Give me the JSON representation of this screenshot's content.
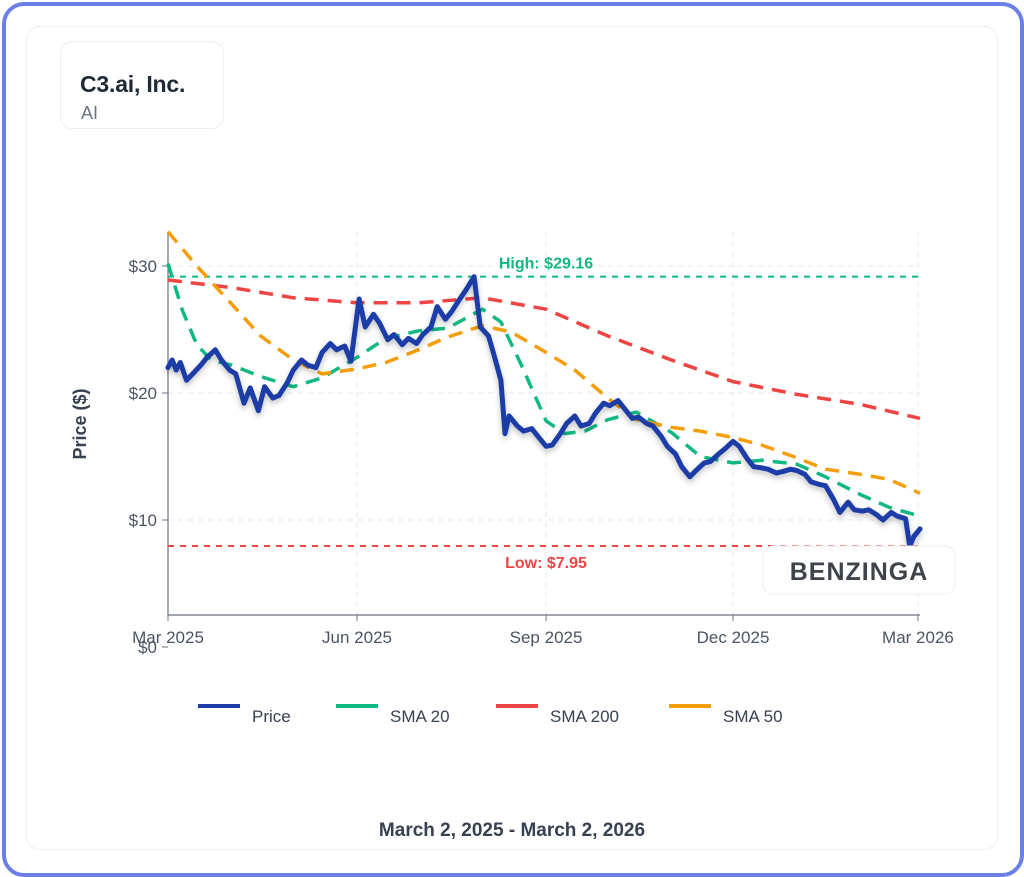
{
  "header": {
    "company": "C3.ai, Inc.",
    "ticker": "AI"
  },
  "footer": {
    "date_range": "March 2, 2025 - March 2, 2026"
  },
  "watermark": "BENZINGA",
  "colors": {
    "price": "#1e3ea8",
    "sma20": "#10b981",
    "sma200": "#ef4444",
    "sma50": "#f59e0b",
    "high": "#10b981",
    "low": "#ef4444",
    "frame": "#6b7fe6"
  },
  "chart_data": {
    "type": "line",
    "ylabel": "Price ($)",
    "xlabel": "",
    "ylim": [
      0,
      33
    ],
    "xlim": [
      "2025-03-01",
      "2026-03-02"
    ],
    "yticks": [
      {
        "value": 0,
        "label": "$0"
      },
      {
        "value": 10,
        "label": "$10"
      },
      {
        "value": 20,
        "label": "$20"
      },
      {
        "value": 30,
        "label": "$30"
      }
    ],
    "xticks": [
      {
        "date": "2025-03-01",
        "label": "Mar 2025"
      },
      {
        "date": "2025-06-01",
        "label": "Jun 2025"
      },
      {
        "date": "2025-09-01",
        "label": "Sep 2025"
      },
      {
        "date": "2025-12-01",
        "label": "Dec 2025"
      },
      {
        "date": "2026-03-01",
        "label": "Mar 2026"
      }
    ],
    "grid": true,
    "legend_position": "bottom",
    "annotations": [
      {
        "label": "High: $29.16",
        "value": 29.16,
        "series": "high"
      },
      {
        "label": "Low: $7.95",
        "value": 7.95,
        "series": "low"
      }
    ],
    "series": [
      {
        "name": "Price",
        "key": "price",
        "style": "solid",
        "points": [
          [
            "2025-03-01",
            22.0
          ],
          [
            "2025-03-03",
            22.6
          ],
          [
            "2025-03-05",
            21.8
          ],
          [
            "2025-03-07",
            22.4
          ],
          [
            "2025-03-10",
            21.0
          ],
          [
            "2025-03-13",
            21.5
          ],
          [
            "2025-03-17",
            22.2
          ],
          [
            "2025-03-20",
            22.8
          ],
          [
            "2025-03-24",
            23.4
          ],
          [
            "2025-03-27",
            22.6
          ],
          [
            "2025-03-31",
            21.8
          ],
          [
            "2025-04-03",
            21.5
          ],
          [
            "2025-04-07",
            19.2
          ],
          [
            "2025-04-10",
            20.4
          ],
          [
            "2025-04-14",
            18.6
          ],
          [
            "2025-04-17",
            20.5
          ],
          [
            "2025-04-21",
            19.6
          ],
          [
            "2025-04-24",
            19.8
          ],
          [
            "2025-04-28",
            20.8
          ],
          [
            "2025-05-01",
            21.8
          ],
          [
            "2025-05-05",
            22.6
          ],
          [
            "2025-05-08",
            22.2
          ],
          [
            "2025-05-12",
            22.0
          ],
          [
            "2025-05-15",
            23.2
          ],
          [
            "2025-05-19",
            23.9
          ],
          [
            "2025-05-22",
            23.4
          ],
          [
            "2025-05-26",
            23.7
          ],
          [
            "2025-05-29",
            22.5
          ],
          [
            "2025-06-02",
            27.4
          ],
          [
            "2025-06-05",
            25.2
          ],
          [
            "2025-06-09",
            26.2
          ],
          [
            "2025-06-12",
            25.5
          ],
          [
            "2025-06-16",
            24.2
          ],
          [
            "2025-06-19",
            24.6
          ],
          [
            "2025-06-23",
            23.8
          ],
          [
            "2025-06-26",
            24.3
          ],
          [
            "2025-06-30",
            23.9
          ],
          [
            "2025-07-03",
            24.6
          ],
          [
            "2025-07-07",
            25.2
          ],
          [
            "2025-07-10",
            26.8
          ],
          [
            "2025-07-14",
            25.8
          ],
          [
            "2025-07-17",
            26.4
          ],
          [
            "2025-07-21",
            27.4
          ],
          [
            "2025-07-24",
            28.1
          ],
          [
            "2025-07-28",
            29.16
          ],
          [
            "2025-07-31",
            25.2
          ],
          [
            "2025-08-04",
            24.5
          ],
          [
            "2025-08-07",
            22.8
          ],
          [
            "2025-08-10",
            21.0
          ],
          [
            "2025-08-12",
            16.8
          ],
          [
            "2025-08-14",
            18.2
          ],
          [
            "2025-08-18",
            17.4
          ],
          [
            "2025-08-21",
            17.0
          ],
          [
            "2025-08-25",
            17.2
          ],
          [
            "2025-08-28",
            16.6
          ],
          [
            "2025-09-01",
            15.8
          ],
          [
            "2025-09-04",
            15.9
          ],
          [
            "2025-09-08",
            16.8
          ],
          [
            "2025-09-11",
            17.6
          ],
          [
            "2025-09-15",
            18.2
          ],
          [
            "2025-09-18",
            17.4
          ],
          [
            "2025-09-22",
            17.6
          ],
          [
            "2025-09-25",
            18.4
          ],
          [
            "2025-09-29",
            19.2
          ],
          [
            "2025-10-02",
            19.0
          ],
          [
            "2025-10-06",
            19.4
          ],
          [
            "2025-10-09",
            18.8
          ],
          [
            "2025-10-13",
            18.0
          ],
          [
            "2025-10-16",
            18.1
          ],
          [
            "2025-10-20",
            17.6
          ],
          [
            "2025-10-23",
            17.4
          ],
          [
            "2025-10-27",
            16.6
          ],
          [
            "2025-10-30",
            15.8
          ],
          [
            "2025-11-03",
            15.2
          ],
          [
            "2025-11-06",
            14.2
          ],
          [
            "2025-11-10",
            13.4
          ],
          [
            "2025-11-13",
            13.9
          ],
          [
            "2025-11-17",
            14.5
          ],
          [
            "2025-11-20",
            14.6
          ],
          [
            "2025-11-24",
            15.2
          ],
          [
            "2025-11-27",
            15.6
          ],
          [
            "2025-12-01",
            16.2
          ],
          [
            "2025-12-04",
            15.8
          ],
          [
            "2025-12-08",
            14.8
          ],
          [
            "2025-12-11",
            14.2
          ],
          [
            "2025-12-15",
            14.1
          ],
          [
            "2025-12-18",
            14.0
          ],
          [
            "2025-12-22",
            13.7
          ],
          [
            "2025-12-25",
            13.8
          ],
          [
            "2025-12-29",
            14.0
          ],
          [
            "2026-01-01",
            13.9
          ],
          [
            "2026-01-05",
            13.6
          ],
          [
            "2026-01-08",
            13.0
          ],
          [
            "2026-01-12",
            12.8
          ],
          [
            "2026-01-15",
            12.7
          ],
          [
            "2026-01-19",
            11.6
          ],
          [
            "2026-01-22",
            10.6
          ],
          [
            "2026-01-26",
            11.4
          ],
          [
            "2026-01-29",
            10.8
          ],
          [
            "2026-02-02",
            10.7
          ],
          [
            "2026-02-05",
            10.8
          ],
          [
            "2026-02-09",
            10.4
          ],
          [
            "2026-02-12",
            10.0
          ],
          [
            "2026-02-16",
            10.6
          ],
          [
            "2026-02-19",
            10.3
          ],
          [
            "2026-02-23",
            10.1
          ],
          [
            "2026-02-25",
            7.95
          ],
          [
            "2026-02-27",
            8.7
          ],
          [
            "2026-03-02",
            9.3
          ]
        ]
      },
      {
        "name": "SMA 20",
        "key": "sma20",
        "style": "dashed",
        "points": [
          [
            "2025-03-01",
            30.2
          ],
          [
            "2025-03-08",
            26.5
          ],
          [
            "2025-03-15",
            23.8
          ],
          [
            "2025-03-22",
            22.6
          ],
          [
            "2025-04-01",
            22.2
          ],
          [
            "2025-04-15",
            21.3
          ],
          [
            "2025-05-01",
            20.5
          ],
          [
            "2025-05-15",
            21.2
          ],
          [
            "2025-06-01",
            22.8
          ],
          [
            "2025-06-15",
            24.3
          ],
          [
            "2025-07-01",
            24.9
          ],
          [
            "2025-07-15",
            25.1
          ],
          [
            "2025-08-01",
            26.6
          ],
          [
            "2025-08-10",
            25.6
          ],
          [
            "2025-08-20",
            22.2
          ],
          [
            "2025-09-01",
            17.8
          ],
          [
            "2025-09-10",
            16.8
          ],
          [
            "2025-09-20",
            17.0
          ],
          [
            "2025-10-01",
            17.9
          ],
          [
            "2025-10-15",
            18.5
          ],
          [
            "2025-11-01",
            16.9
          ],
          [
            "2025-11-15",
            15.0
          ],
          [
            "2025-12-01",
            14.5
          ],
          [
            "2025-12-15",
            14.7
          ],
          [
            "2026-01-01",
            14.4
          ],
          [
            "2026-01-15",
            13.4
          ],
          [
            "2026-02-01",
            12.0
          ],
          [
            "2026-02-15",
            11.0
          ],
          [
            "2026-03-02",
            10.3
          ]
        ]
      },
      {
        "name": "SMA 200",
        "key": "sma200",
        "style": "dashed",
        "points": [
          [
            "2025-03-01",
            28.9
          ],
          [
            "2025-04-01",
            28.3
          ],
          [
            "2025-05-01",
            27.5
          ],
          [
            "2025-06-01",
            27.1
          ],
          [
            "2025-07-01",
            27.1
          ],
          [
            "2025-08-01",
            27.5
          ],
          [
            "2025-09-01",
            26.6
          ],
          [
            "2025-10-01",
            24.5
          ],
          [
            "2025-11-01",
            22.6
          ],
          [
            "2025-12-01",
            20.9
          ],
          [
            "2026-01-01",
            19.9
          ],
          [
            "2026-02-01",
            19.1
          ],
          [
            "2026-03-02",
            18.0
          ]
        ]
      },
      {
        "name": "SMA 50",
        "key": "sma50",
        "style": "dashed",
        "points": [
          [
            "2025-03-01",
            32.7
          ],
          [
            "2025-03-15",
            30.0
          ],
          [
            "2025-04-01",
            27.0
          ],
          [
            "2025-04-15",
            24.5
          ],
          [
            "2025-05-01",
            22.6
          ],
          [
            "2025-05-15",
            21.5
          ],
          [
            "2025-06-01",
            21.9
          ],
          [
            "2025-06-15",
            22.4
          ],
          [
            "2025-07-01",
            23.4
          ],
          [
            "2025-07-15",
            24.4
          ],
          [
            "2025-08-01",
            25.3
          ],
          [
            "2025-08-15",
            24.8
          ],
          [
            "2025-09-01",
            23.2
          ],
          [
            "2025-09-15",
            21.8
          ],
          [
            "2025-10-01",
            19.6
          ],
          [
            "2025-10-15",
            17.9
          ],
          [
            "2025-11-01",
            17.3
          ],
          [
            "2025-11-15",
            17.0
          ],
          [
            "2025-12-01",
            16.5
          ],
          [
            "2025-12-15",
            15.9
          ],
          [
            "2026-01-01",
            14.9
          ],
          [
            "2026-01-15",
            14.0
          ],
          [
            "2026-02-01",
            13.6
          ],
          [
            "2026-02-15",
            13.2
          ],
          [
            "2026-03-02",
            12.1
          ]
        ]
      }
    ]
  }
}
